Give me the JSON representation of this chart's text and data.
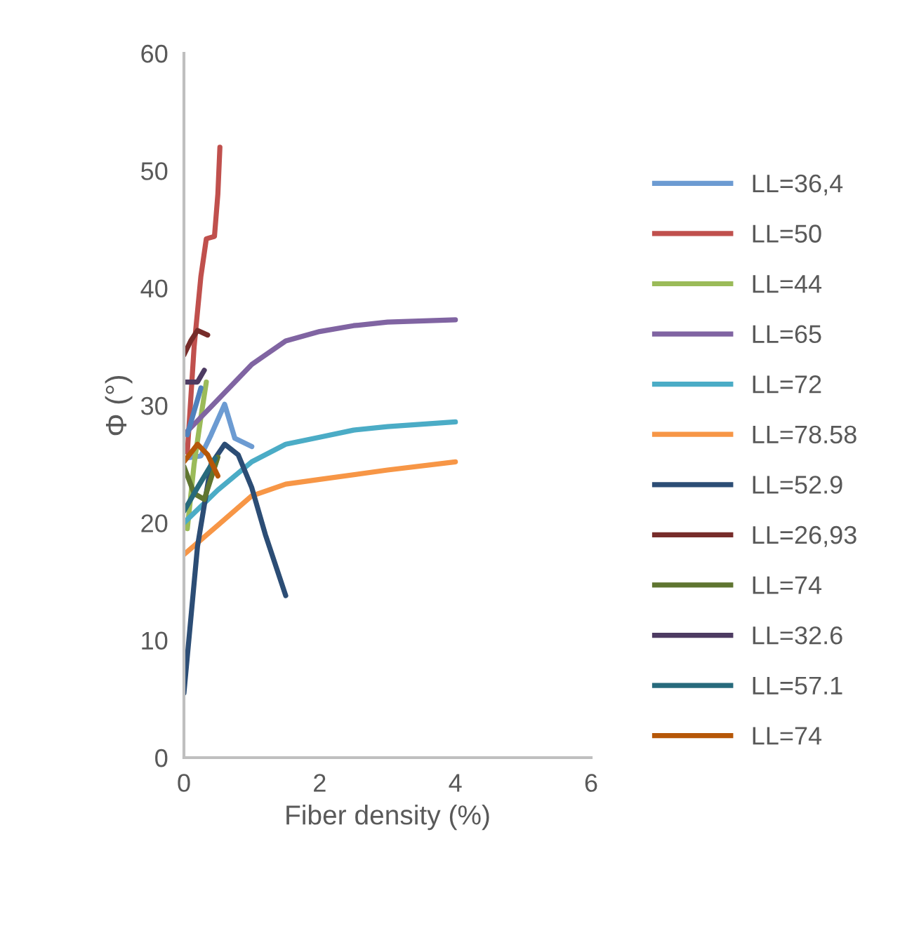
{
  "chart_data": {
    "type": "line",
    "xlabel": "Fiber density (%)",
    "ylabel": "Φ (°)",
    "xlim": [
      0,
      6
    ],
    "xticks": [
      0,
      2,
      4,
      6
    ],
    "ylim": [
      0,
      60
    ],
    "yticks": [
      0,
      10,
      20,
      30,
      40,
      50,
      60
    ],
    "grid": false,
    "legend": "right",
    "marker": "none",
    "line_style": "solid",
    "series": [
      {
        "name": "LL=36,4",
        "color": "#6c9bd2",
        "x": [
          0,
          0.25,
          0.4,
          0.6,
          0.75,
          1.0
        ],
        "values": [
          25.5,
          25.7,
          27.5,
          30.1,
          27.2,
          26.5
        ]
      },
      {
        "name": "LL=50",
        "color": "#c0504d",
        "x": [
          0.05,
          0.15,
          0.25,
          0.33,
          0.45,
          0.5,
          0.53
        ],
        "values": [
          26,
          35,
          41,
          44.2,
          44.4,
          48,
          52
        ]
      },
      {
        "name": "LL=44",
        "color": "#9bbb59",
        "x": [
          0.05,
          0.15,
          0.25,
          0.33
        ],
        "values": [
          19.5,
          25,
          29,
          32
        ]
      },
      {
        "name": "LL=65",
        "color": "#8064a2",
        "x": [
          0,
          0.5,
          1,
          1.5,
          2,
          2.5,
          3,
          4
        ],
        "values": [
          27.5,
          30.5,
          33.5,
          35.5,
          36.3,
          36.8,
          37.1,
          37.3
        ]
      },
      {
        "name": "LL=72",
        "color": "#4bacc6",
        "x": [
          0,
          0.5,
          1,
          1.5,
          2,
          2.5,
          3,
          4
        ],
        "values": [
          20,
          22.8,
          25.2,
          26.7,
          27.3,
          27.9,
          28.2,
          28.6
        ]
      },
      {
        "name": "LL=78.58",
        "color": "#f79646",
        "x": [
          0,
          0.5,
          1,
          1.5,
          2,
          3,
          4
        ],
        "values": [
          17.3,
          19.8,
          22.3,
          23.3,
          23.7,
          24.5,
          25.2
        ]
      },
      {
        "name": "LL=52.9",
        "color": "#2c4d75",
        "x": [
          0,
          0.2,
          0.4,
          0.6,
          0.8,
          1.0,
          1.2,
          1.5
        ],
        "values": [
          5.5,
          18,
          25,
          26.7,
          25.8,
          23,
          19,
          13.8
        ]
      },
      {
        "name": "LL=26,93",
        "color": "#772c2a",
        "x": [
          0,
          0.1,
          0.2,
          0.35
        ],
        "values": [
          34.3,
          35.5,
          36.4,
          36
        ]
      },
      {
        "name": "LL=74",
        "color": "#5f7530",
        "x": [
          0,
          0.15,
          0.3,
          0.5
        ],
        "values": [
          24.8,
          22.5,
          22,
          25.6
        ]
      },
      {
        "name": "LL=32.6",
        "color": "#4d3b62",
        "x": [
          0,
          0.2,
          0.3
        ],
        "values": [
          32,
          32,
          33
        ]
      },
      {
        "name": "LL=57.1",
        "color": "#276a7c",
        "x": [
          0,
          0.2,
          0.46
        ],
        "values": [
          21,
          23,
          25.5
        ]
      },
      {
        "name": "LL=74",
        "color": "#b65708",
        "x": [
          0,
          0.2,
          0.35,
          0.5
        ],
        "values": [
          25.2,
          26.7,
          25.8,
          24
        ]
      },
      {
        "color": "#4f81bd",
        "x": [
          0.05,
          0.15,
          0.25
        ],
        "values": [
          27.5,
          29.5,
          31.5
        ]
      }
    ]
  }
}
